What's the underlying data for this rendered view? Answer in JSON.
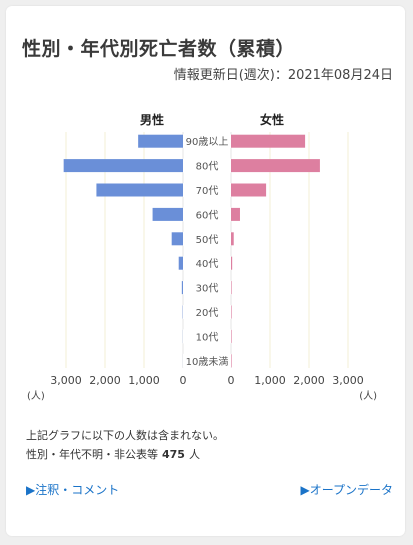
{
  "title": "性別・年代別死亡者数（累積）",
  "updated": "情報更新日(週次)：2021年08月24日",
  "chart_data": {
    "type": "bar",
    "orientation": "horizontal-population-pyramid",
    "categories": [
      "90歳以上",
      "80代",
      "70代",
      "60代",
      "50代",
      "40代",
      "30代",
      "20代",
      "10代",
      "10歳未満"
    ],
    "series": [
      {
        "name": "男性",
        "color": "#6a8fd8",
        "values": [
          1150,
          3060,
          2220,
          780,
          290,
          110,
          30,
          8,
          3,
          1
        ]
      },
      {
        "name": "女性",
        "color": "#dd7fa0",
        "values": [
          1900,
          2280,
          900,
          230,
          70,
          30,
          10,
          3,
          1,
          1
        ]
      }
    ],
    "xlim": [
      0,
      3000
    ],
    "x_ticks": [
      "3,000",
      "2,000",
      "1,000",
      "0",
      "0",
      "1,000",
      "2,000",
      "3,000"
    ],
    "unit_left": "(人)",
    "unit_right": "(人)",
    "grid": true
  },
  "note": {
    "line1": "上記グラフに以下の人数は含まれない。",
    "line2_prefix": "性別・年代不明・非公表等",
    "count": "475",
    "unit": "人"
  },
  "links": {
    "notes": "▶注釈・コメント",
    "open_data": "▶オープンデータ"
  }
}
